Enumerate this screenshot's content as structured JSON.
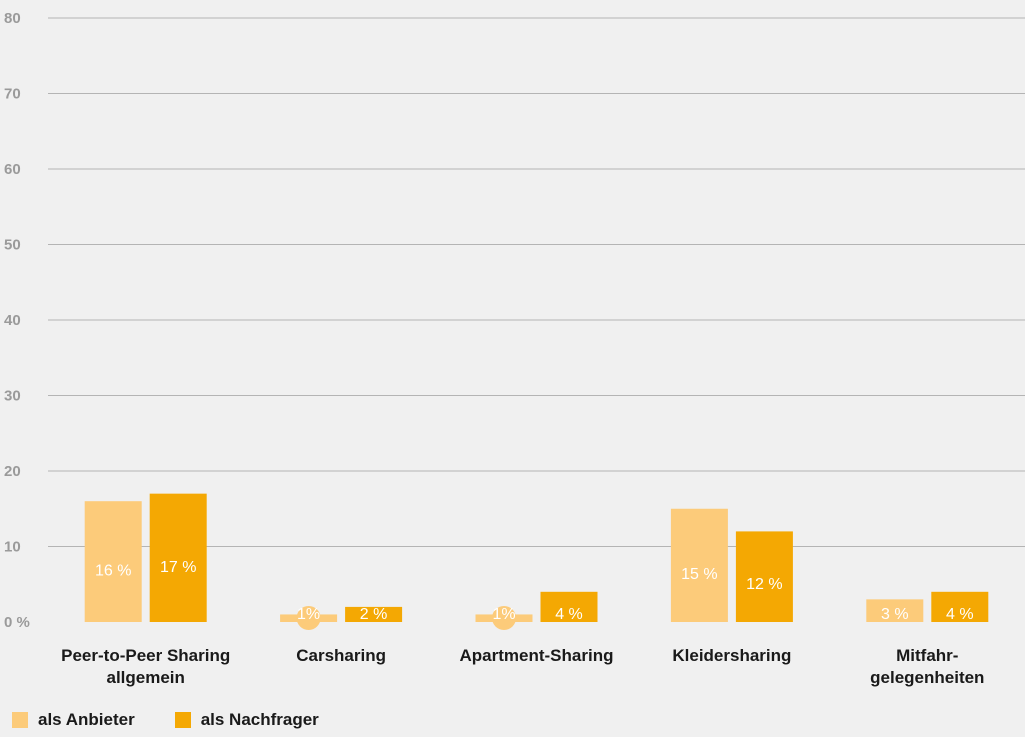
{
  "chart_data": {
    "type": "bar",
    "categories": [
      "Peer-to-Peer Sharing\nallgemein",
      "Carsharing",
      "Apartment-Sharing",
      "Kleidersharing",
      "Mitfahr-\ngelegenheiten"
    ],
    "series": [
      {
        "name": "als Anbieter",
        "color": "#fccb7a",
        "values": [
          16,
          1,
          1,
          15,
          3
        ],
        "labels": [
          "16 %",
          "1%",
          "1%",
          "15 %",
          "3 %"
        ]
      },
      {
        "name": "als Nachfrager",
        "color": "#f4a803",
        "values": [
          17,
          2,
          4,
          12,
          4
        ],
        "labels": [
          "17 %",
          "2 %",
          "4 %",
          "12 %",
          "4 %"
        ]
      }
    ],
    "yticks": [
      "0 %",
      "10",
      "20",
      "30",
      "40",
      "50",
      "60",
      "70",
      "80"
    ],
    "ylim": [
      0,
      80
    ],
    "grid": true,
    "legend_position": "bottom-left",
    "title": "",
    "xlabel": "",
    "ylabel": ""
  }
}
